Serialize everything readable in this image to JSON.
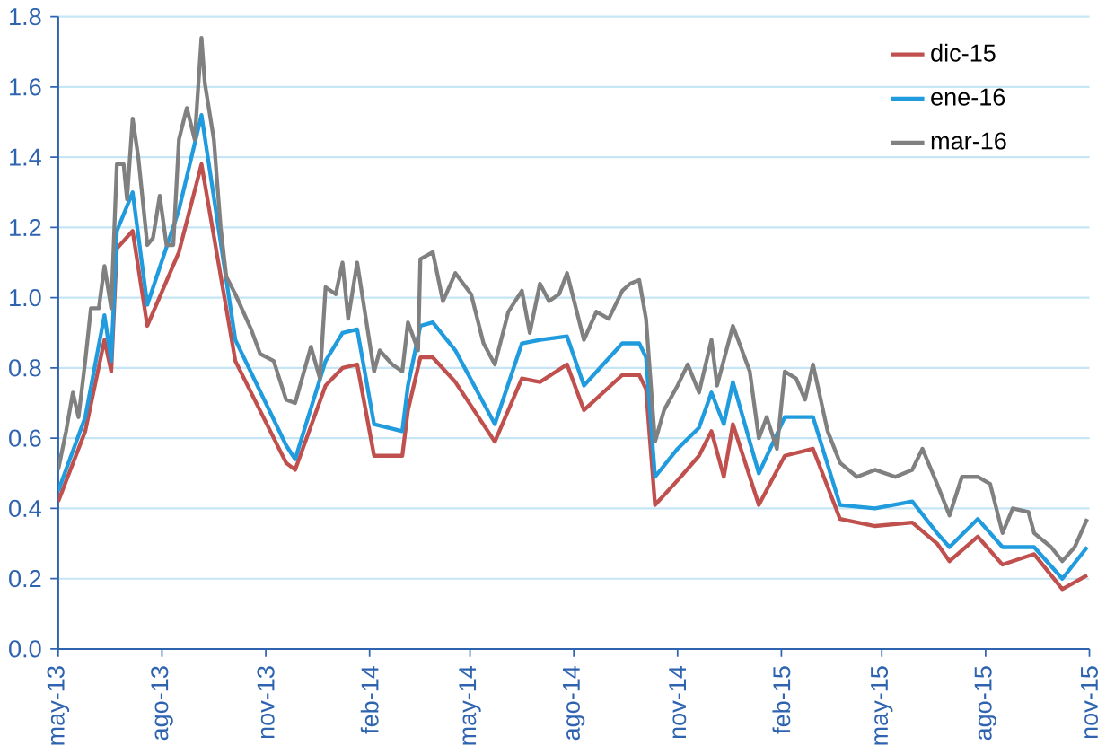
{
  "chart_data": {
    "type": "line",
    "xlim": [
      "2013-05-01",
      "2015-11-01"
    ],
    "xticks": [
      {
        "value": "2013-05-01",
        "label": "may-13"
      },
      {
        "value": "2013-08-01",
        "label": "ago-13"
      },
      {
        "value": "2013-11-01",
        "label": "nov-13"
      },
      {
        "value": "2014-02-01",
        "label": "feb-14"
      },
      {
        "value": "2014-05-01",
        "label": "may-14"
      },
      {
        "value": "2014-08-01",
        "label": "ago-14"
      },
      {
        "value": "2014-11-01",
        "label": "nov-14"
      },
      {
        "value": "2015-02-01",
        "label": "feb-15"
      },
      {
        "value": "2015-05-01",
        "label": "may-15"
      },
      {
        "value": "2015-08-01",
        "label": "ago-15"
      },
      {
        "value": "2015-11-01",
        "label": "nov-15"
      }
    ],
    "ylim": [
      0,
      1.8
    ],
    "yticks": [
      {
        "value": 0,
        "label": "0.0"
      },
      0.2,
      0.4,
      0.6,
      0.8,
      {
        "value": 1,
        "label": "1.0"
      },
      1.2,
      1.4,
      1.6,
      1.8
    ],
    "grid": "y",
    "legend": "top right",
    "marker": "none",
    "line_style": "solid",
    "series": [
      {
        "name": "dic-15",
        "color": "#c0504d",
        "x": [
          "2013-05-01",
          "2013-05-25",
          "2013-06-11",
          "2013-06-17",
          "2013-06-22",
          "2013-07-06",
          "2013-07-19",
          "2013-08-16",
          "2013-09-05",
          "2013-10-05",
          "2013-11-19",
          "2013-11-27",
          "2013-12-24",
          "2014-01-08",
          "2014-01-21",
          "2014-02-05",
          "2014-03-02",
          "2014-03-07",
          "2014-03-18",
          "2014-03-29",
          "2014-04-18",
          "2014-05-23",
          "2014-06-16",
          "2014-07-02",
          "2014-07-26",
          "2014-08-10",
          "2014-09-13",
          "2014-09-28",
          "2014-10-04",
          "2014-10-12",
          "2014-11-01",
          "2014-11-20",
          "2014-12-01",
          "2014-12-12",
          "2014-12-20",
          "2015-01-12",
          "2015-02-04",
          "2015-03-01",
          "2015-03-25",
          "2015-04-25",
          "2015-05-28",
          "2015-06-19",
          "2015-06-30",
          "2015-07-25",
          "2015-08-16",
          "2015-09-13",
          "2015-10-08",
          "2015-10-30"
        ],
        "values": [
          0.42,
          0.62,
          0.88,
          0.79,
          1.14,
          1.19,
          0.92,
          1.13,
          1.38,
          0.82,
          0.53,
          0.51,
          0.75,
          0.8,
          0.81,
          0.55,
          0.55,
          0.68,
          0.83,
          0.83,
          0.76,
          0.59,
          0.77,
          0.76,
          0.81,
          0.68,
          0.78,
          0.78,
          0.74,
          0.41,
          0.48,
          0.55,
          0.62,
          0.49,
          0.64,
          0.41,
          0.55,
          0.57,
          0.37,
          0.35,
          0.36,
          0.3,
          0.25,
          0.32,
          0.24,
          0.27,
          0.17,
          0.21
        ]
      },
      {
        "name": "ene-16",
        "color": "#1f9bde",
        "x": [
          "2013-05-01",
          "2013-05-25",
          "2013-06-11",
          "2013-06-17",
          "2013-06-22",
          "2013-07-06",
          "2013-07-19",
          "2013-08-16",
          "2013-09-05",
          "2013-10-05",
          "2013-11-19",
          "2013-11-27",
          "2013-12-24",
          "2014-01-08",
          "2014-01-21",
          "2014-02-05",
          "2014-03-02",
          "2014-03-07",
          "2014-03-18",
          "2014-03-29",
          "2014-04-18",
          "2014-05-23",
          "2014-06-16",
          "2014-07-02",
          "2014-07-26",
          "2014-08-10",
          "2014-09-13",
          "2014-09-28",
          "2014-10-04",
          "2014-10-12",
          "2014-11-01",
          "2014-11-20",
          "2014-12-01",
          "2014-12-12",
          "2014-12-20",
          "2015-01-12",
          "2015-02-04",
          "2015-03-01",
          "2015-03-25",
          "2015-04-25",
          "2015-05-28",
          "2015-06-19",
          "2015-06-30",
          "2015-07-25",
          "2015-08-16",
          "2015-09-13",
          "2015-10-08",
          "2015-10-30"
        ],
        "values": [
          0.45,
          0.66,
          0.95,
          0.82,
          1.19,
          1.3,
          0.98,
          1.25,
          1.52,
          0.88,
          0.58,
          0.54,
          0.82,
          0.9,
          0.91,
          0.64,
          0.62,
          0.75,
          0.92,
          0.93,
          0.85,
          0.64,
          0.87,
          0.88,
          0.89,
          0.75,
          0.87,
          0.87,
          0.83,
          0.49,
          0.57,
          0.63,
          0.73,
          0.64,
          0.76,
          0.5,
          0.66,
          0.66,
          0.41,
          0.4,
          0.42,
          0.33,
          0.29,
          0.37,
          0.29,
          0.29,
          0.2,
          0.29
        ]
      },
      {
        "name": "mar-16",
        "color": "#808080",
        "x": [
          "2013-05-01",
          "2013-05-08",
          "2013-05-14",
          "2013-05-19",
          "2013-05-25",
          "2013-05-30",
          "2013-06-06",
          "2013-06-11",
          "2013-06-17",
          "2013-06-22",
          "2013-06-28",
          "2013-07-01",
          "2013-07-06",
          "2013-07-11",
          "2013-07-19",
          "2013-07-24",
          "2013-07-30",
          "2013-08-05",
          "2013-08-11",
          "2013-08-16",
          "2013-08-23",
          "2013-08-30",
          "2013-09-05",
          "2013-09-08",
          "2013-09-16",
          "2013-09-22",
          "2013-09-27",
          "2013-10-05",
          "2013-10-19",
          "2013-10-27",
          "2013-11-08",
          "2013-11-19",
          "2013-11-27",
          "2013-12-11",
          "2013-12-19",
          "2013-12-24",
          "2014-01-02",
          "2014-01-08",
          "2014-01-13",
          "2014-01-21",
          "2014-02-05",
          "2014-02-10",
          "2014-02-21",
          "2014-03-02",
          "2014-03-07",
          "2014-03-16",
          "2014-03-18",
          "2014-03-29",
          "2014-04-07",
          "2014-04-18",
          "2014-05-02",
          "2014-05-13",
          "2014-05-23",
          "2014-06-04",
          "2014-06-16",
          "2014-06-23",
          "2014-07-02",
          "2014-07-10",
          "2014-07-19",
          "2014-07-26",
          "2014-08-10",
          "2014-08-21",
          "2014-09-01",
          "2014-09-13",
          "2014-09-20",
          "2014-09-28",
          "2014-10-04",
          "2014-10-12",
          "2014-10-20",
          "2014-11-01",
          "2014-11-10",
          "2014-11-20",
          "2014-12-01",
          "2014-12-06",
          "2014-12-20",
          "2015-01-04",
          "2015-01-12",
          "2015-01-19",
          "2015-01-28",
          "2015-02-04",
          "2015-02-14",
          "2015-02-22",
          "2015-03-01",
          "2015-03-14",
          "2015-03-25",
          "2015-04-09",
          "2015-04-25",
          "2015-05-13",
          "2015-05-28",
          "2015-06-06",
          "2015-06-19",
          "2015-06-30",
          "2015-07-11",
          "2015-07-25",
          "2015-08-05",
          "2015-08-16",
          "2015-08-25",
          "2015-09-08",
          "2015-09-13",
          "2015-09-28",
          "2015-10-08",
          "2015-10-19",
          "2015-10-30"
        ],
        "values": [
          0.51,
          0.62,
          0.73,
          0.66,
          0.82,
          0.97,
          0.97,
          1.09,
          0.97,
          1.38,
          1.38,
          1.28,
          1.51,
          1.4,
          1.15,
          1.17,
          1.29,
          1.15,
          1.15,
          1.45,
          1.54,
          1.45,
          1.74,
          1.61,
          1.45,
          1.2,
          1.06,
          1.01,
          0.91,
          0.84,
          0.82,
          0.71,
          0.7,
          0.86,
          0.77,
          1.03,
          1.01,
          1.1,
          0.94,
          1.1,
          0.79,
          0.85,
          0.81,
          0.79,
          0.93,
          0.85,
          1.11,
          1.13,
          0.99,
          1.07,
          1.01,
          0.87,
          0.81,
          0.96,
          1.02,
          0.9,
          1.04,
          0.99,
          1.01,
          1.07,
          0.88,
          0.96,
          0.94,
          1.02,
          1.04,
          1.05,
          0.94,
          0.59,
          0.68,
          0.75,
          0.81,
          0.73,
          0.88,
          0.75,
          0.92,
          0.79,
          0.6,
          0.66,
          0.57,
          0.79,
          0.77,
          0.71,
          0.81,
          0.62,
          0.53,
          0.49,
          0.51,
          0.49,
          0.51,
          0.57,
          0.47,
          0.38,
          0.49,
          0.49,
          0.47,
          0.33,
          0.4,
          0.39,
          0.33,
          0.29,
          0.25,
          0.29,
          0.37
        ]
      }
    ]
  }
}
